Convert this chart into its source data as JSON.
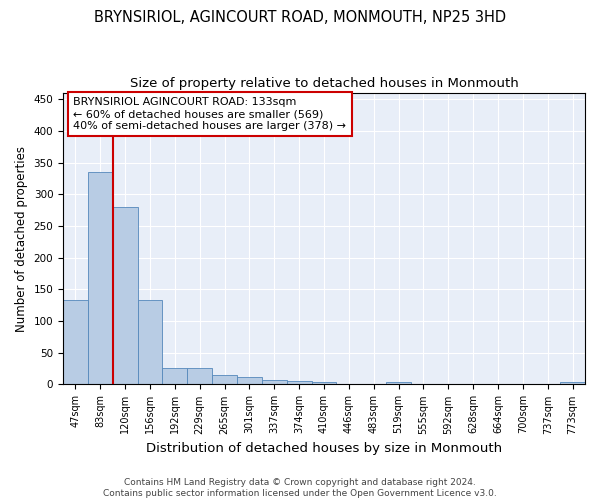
{
  "title": "BRYNSIRIOL, AGINCOURT ROAD, MONMOUTH, NP25 3HD",
  "subtitle": "Size of property relative to detached houses in Monmouth",
  "xlabel": "Distribution of detached houses by size in Monmouth",
  "ylabel": "Number of detached properties",
  "categories": [
    "47sqm",
    "83sqm",
    "120sqm",
    "156sqm",
    "192sqm",
    "229sqm",
    "265sqm",
    "301sqm",
    "337sqm",
    "374sqm",
    "410sqm",
    "446sqm",
    "483sqm",
    "519sqm",
    "555sqm",
    "592sqm",
    "628sqm",
    "664sqm",
    "700sqm",
    "737sqm",
    "773sqm"
  ],
  "values": [
    133,
    335,
    280,
    133,
    26,
    26,
    15,
    11,
    7,
    6,
    4,
    0,
    0,
    4,
    0,
    0,
    0,
    0,
    0,
    0,
    4
  ],
  "bar_color": "#b8cce4",
  "bar_edgecolor": "#5588bb",
  "vline_x_index": 2,
  "vline_color": "#cc0000",
  "annotation_title": "BRYNSIRIOL AGINCOURT ROAD: 133sqm",
  "annotation_line1": "← 60% of detached houses are smaller (569)",
  "annotation_line2": "40% of semi-detached houses are larger (378) →",
  "annotation_box_color": "#ffffff",
  "annotation_box_edgecolor": "#cc0000",
  "footer1": "Contains HM Land Registry data © Crown copyright and database right 2024.",
  "footer2": "Contains public sector information licensed under the Open Government Licence v3.0.",
  "ylim": [
    0,
    460
  ],
  "yticks": [
    0,
    50,
    100,
    150,
    200,
    250,
    300,
    350,
    400,
    450
  ],
  "title_fontsize": 10.5,
  "subtitle_fontsize": 9.5,
  "tick_fontsize": 7,
  "ylabel_fontsize": 8.5,
  "xlabel_fontsize": 9.5,
  "footer_fontsize": 6.5,
  "annotation_fontsize": 8,
  "background_color": "#ffffff",
  "plot_background": "#e8eef8"
}
